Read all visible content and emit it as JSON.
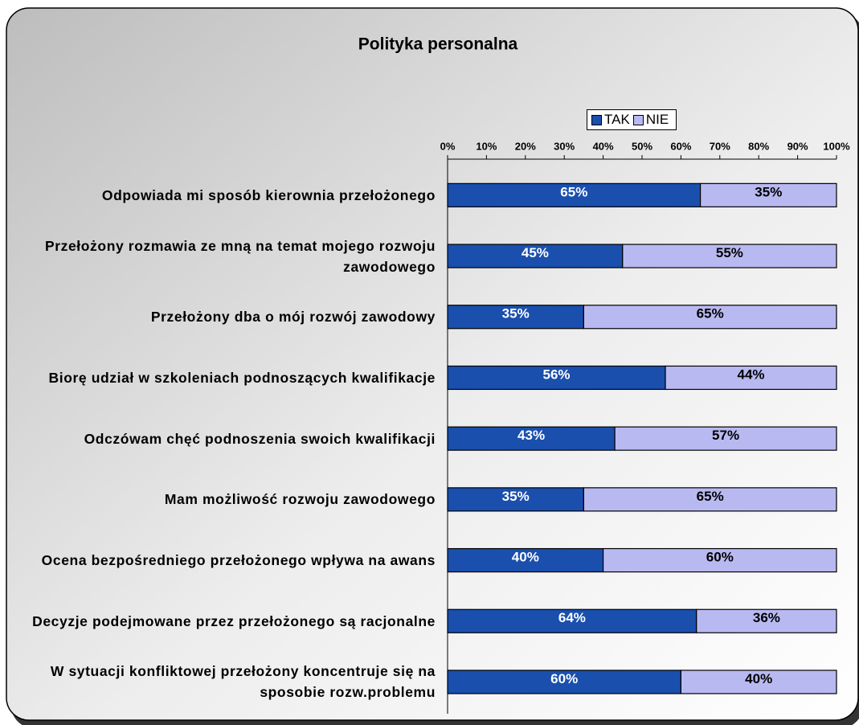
{
  "chart_data": {
    "type": "stacked_barh",
    "title": "Polityka personalna",
    "categories": [
      "Odpowiada mi sposób kierownia przełożonego",
      "Przełożony rozmawia ze mną na temat mojego rozwoju zawodowego",
      "Przełożony dba o mój rozwój zawodowy",
      "Biorę udział w szkoleniach podnoszących kwalifikacje",
      "Odczówam chęć podnoszenia swoich kwalifikacji",
      "Mam możliwość rozwoju zawodowego",
      "Ocena bezpośredniego przełożonego wpływa na awans",
      "Decyzje podejmowane przez przełożonego są racjonalne",
      "W sytuacji konfliktowej przełożony koncentruje się na sposobie rozw.problemu"
    ],
    "series": [
      {
        "name": "TAK",
        "color": "#1a4fae",
        "values": [
          65,
          45,
          35,
          56,
          43,
          35,
          40,
          64,
          60
        ],
        "value_labels": [
          "65%",
          "45%",
          "35%",
          "56%",
          "43%",
          "35%",
          "40%",
          "64%",
          "60%"
        ]
      },
      {
        "name": "NIE",
        "color": "#b9b9f2",
        "values": [
          35,
          55,
          65,
          44,
          57,
          65,
          60,
          36,
          40
        ],
        "value_labels": [
          "35%",
          "55%",
          "65%",
          "44%",
          "57%",
          "65%",
          "60%",
          "36%",
          "40%"
        ]
      }
    ],
    "xlim": [
      0,
      100
    ],
    "xticks": [
      {
        "value": 0,
        "label": "0%"
      },
      {
        "value": 10,
        "label": "10%"
      },
      {
        "value": 20,
        "label": "20%"
      },
      {
        "value": 30,
        "label": "30%"
      },
      {
        "value": 40,
        "label": "40%"
      },
      {
        "value": 50,
        "label": "50%"
      },
      {
        "value": 60,
        "label": "60%"
      },
      {
        "value": 70,
        "label": "70%"
      },
      {
        "value": 80,
        "label": "80%"
      },
      {
        "value": 90,
        "label": "90%"
      },
      {
        "value": 100,
        "label": "100%"
      }
    ],
    "legend": "top"
  }
}
